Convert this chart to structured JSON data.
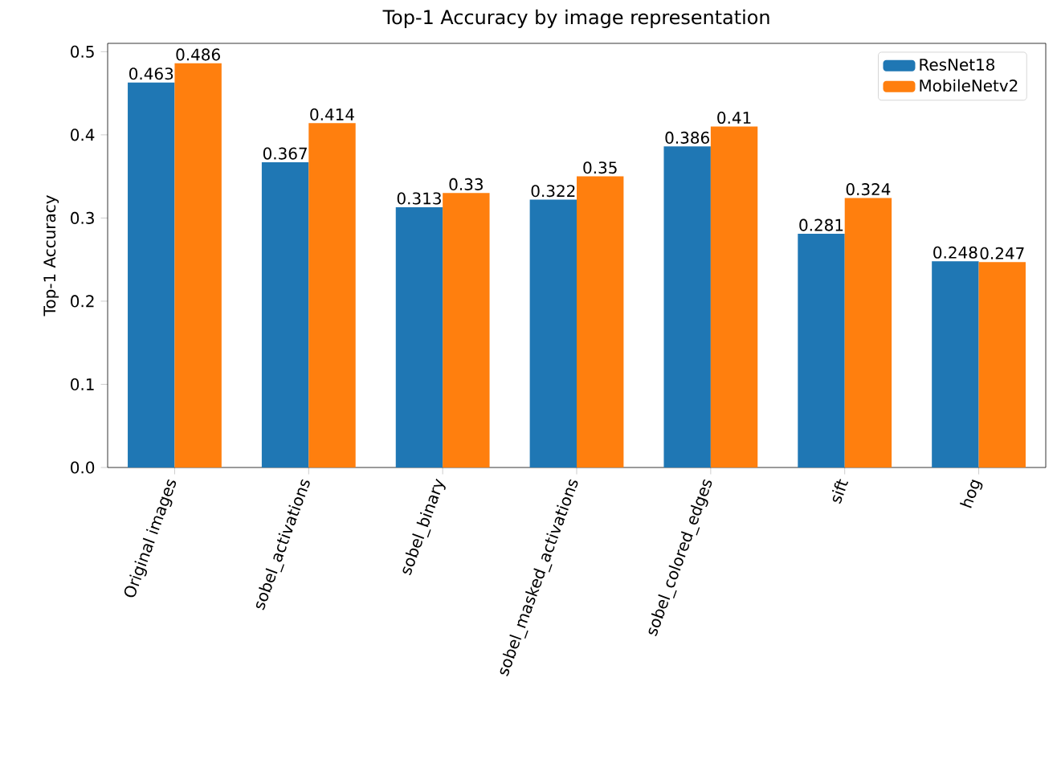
{
  "chart_data": {
    "type": "bar",
    "title": "Top-1 Accuracy by image representation",
    "ylabel": "Top-1 Accuracy",
    "categories": [
      "Original images",
      "sobel_activations",
      "sobel_binary",
      "sobel_masked_activations",
      "sobel_colored_edges",
      "sift",
      "hog"
    ],
    "series": [
      {
        "name": "ResNet18",
        "color": "#1f77b4",
        "values": [
          0.463,
          0.367,
          0.313,
          0.322,
          0.386,
          0.281,
          0.248
        ]
      },
      {
        "name": "MobileNetv2",
        "color": "#ff7f0e",
        "values": [
          0.486,
          0.414,
          0.33,
          0.35,
          0.41,
          0.324,
          0.247
        ]
      }
    ],
    "ylim": [
      0,
      0.51
    ],
    "yticks": [
      {
        "value": 0,
        "label": "0.0"
      },
      0.1,
      0.2,
      0.3,
      0.4,
      0.5
    ],
    "data_labels": true,
    "legend": "top right",
    "grid": false
  }
}
